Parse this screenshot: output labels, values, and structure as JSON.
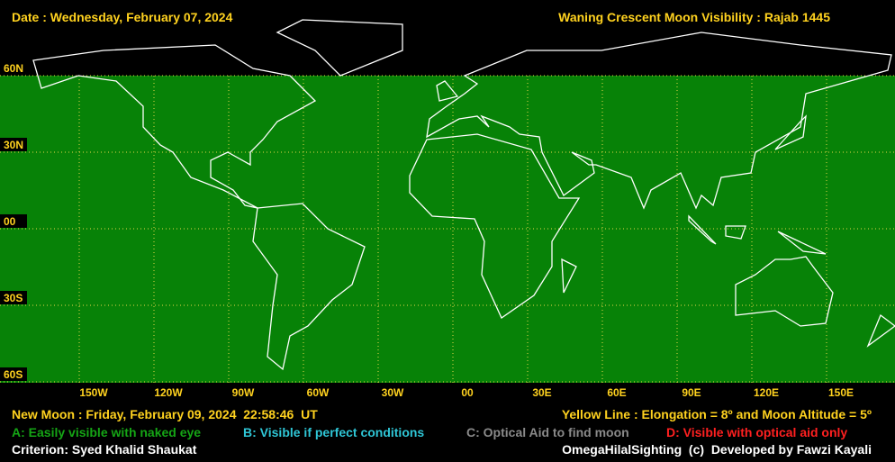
{
  "header": {
    "date": "Date : Wednesday, February 07, 2024",
    "title": "Waning Crescent Moon Visibility : Rajab 1445"
  },
  "map": {
    "lat_labels": [
      "60N",
      "30N",
      "00",
      "30S",
      "60S"
    ],
    "lon_labels": [
      "150W",
      "120W",
      "90W",
      "60W",
      "30W",
      "00",
      "30E",
      "60E",
      "90E",
      "120E",
      "150E"
    ]
  },
  "footer": {
    "new_moon": "New Moon : Friday, February 09, 2024  22:58:46  UT",
    "yellow_line": "Yellow Line : Elongation = 8º and Moon Altitude = 5º",
    "legend": [
      "A: Easily visible with naked eye",
      "B: Visible if perfect conditions",
      "C: Optical Aid to find moon",
      "D: Visible with optical aid only"
    ],
    "criterion": "Criterion: Syed Khalid Shaukat",
    "credit": "OmegaHilalSighting  (c)  Developed by Fawzi Kayali"
  }
}
